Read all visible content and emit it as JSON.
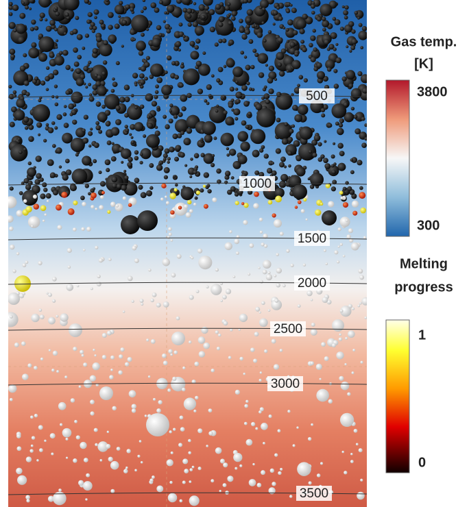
{
  "contours": {
    "labels": [
      500,
      1000,
      1500,
      2000,
      2500,
      3000,
      3500
    ]
  },
  "colorbars": [
    {
      "title_lines": [
        "Gas temp.",
        "[K]"
      ],
      "max_label": 3800,
      "min_label": 300
    },
    {
      "title_lines": [
        "Melting",
        "progress"
      ],
      "max_label": 1,
      "min_label": 0
    }
  ]
}
